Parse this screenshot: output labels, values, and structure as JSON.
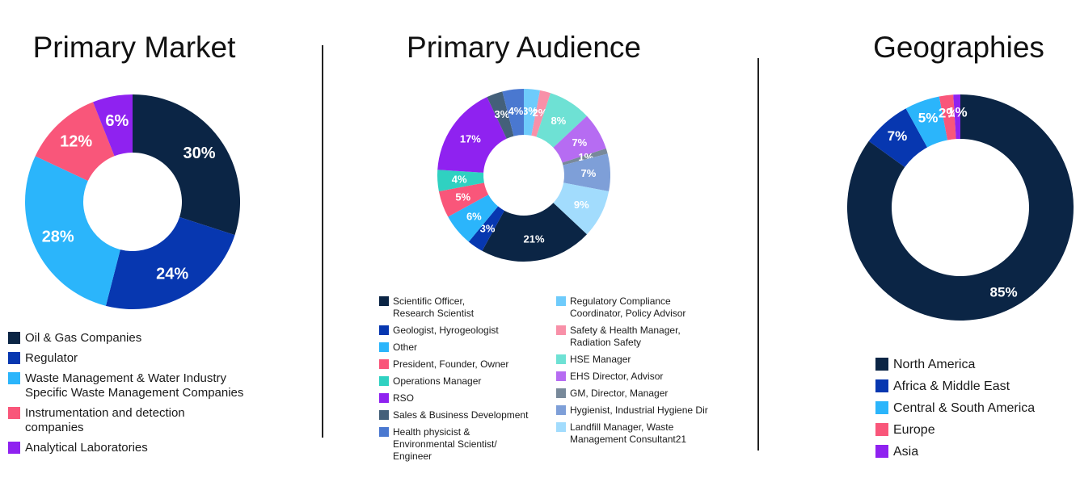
{
  "chart_data": [
    {
      "type": "pie",
      "title": "Primary Market",
      "categories": [
        "Oil & Gas Companies",
        "Regulator",
        "Waste Management & Water Industry\nSpecific Waste Management Companies",
        "Instrumentation and detection\ncompanies",
        "Analytical Laboratories"
      ],
      "values": [
        30,
        24,
        28,
        12,
        6
      ],
      "labels": [
        "30%",
        "24%",
        "28%",
        "12%",
        "6%"
      ],
      "colors": [
        "#0b2545",
        "#0737b0",
        "#2bb5fb",
        "#f9567a",
        "#8f22f0"
      ],
      "legend_position": "bottom"
    },
    {
      "type": "pie",
      "title": "Primary Audience",
      "categories": [
        "Regulatory Compliance\nCoordinator, Policy Advisor",
        "Safety & Health Manager,\nRadiation Safety",
        "HSE Manager",
        "EHS Director, Advisor",
        "GM, Director, Manager",
        "Hygienist, Industrial Hygiene Dir",
        "Landfill Manager, Waste\nManagement Consultant21",
        "Scientific Officer,\nResearch Scientist",
        "Geologist, Hyrogeologist",
        "Other",
        "President, Founder, Owner",
        "Operations Manager",
        "RSO",
        "Sales & Business Development",
        "Health physicist &\nEnvironmental Scientist/\nEngineer"
      ],
      "values": [
        3,
        2,
        8,
        7,
        1,
        7,
        9,
        21,
        3,
        6,
        5,
        4,
        17,
        3,
        4
      ],
      "labels": [
        "3%",
        "2%",
        "8%",
        "7%",
        "1%",
        "7%",
        "9%",
        "21%",
        "3%",
        "6%",
        "5%",
        "4%",
        "17%",
        "3%",
        "4%"
      ],
      "colors": [
        "#6ecbfb",
        "#f890a8",
        "#6ee1d4",
        "#b66cf2",
        "#78899a",
        "#7e9fd8",
        "#a2dcfd",
        "#0b2545",
        "#0737b0",
        "#2bb5fb",
        "#f9567a",
        "#2fd1c1",
        "#8f22f0",
        "#44607a",
        "#4a78d0"
      ],
      "legend_position": "bottom"
    },
    {
      "type": "pie",
      "title": "Geographies",
      "categories": [
        "North America",
        "Africa & Middle East",
        "Central & South America",
        "Europe",
        "Asia"
      ],
      "values": [
        85,
        7,
        5,
        2,
        1
      ],
      "labels": [
        "85%",
        "7%",
        "5%",
        "2%",
        "1%"
      ],
      "colors": [
        "#0b2545",
        "#0737b0",
        "#2bb5fb",
        "#f9567a",
        "#8f22f0"
      ],
      "legend_position": "bottom"
    }
  ],
  "legends": [
    {
      "order": [
        0,
        1,
        2,
        3,
        4
      ]
    },
    {
      "left": [
        7,
        8,
        9,
        10,
        11,
        12,
        13,
        14
      ],
      "right": [
        0,
        1,
        2,
        3,
        4,
        5,
        6
      ]
    },
    {
      "order": [
        0,
        1,
        2,
        3,
        4
      ]
    }
  ]
}
